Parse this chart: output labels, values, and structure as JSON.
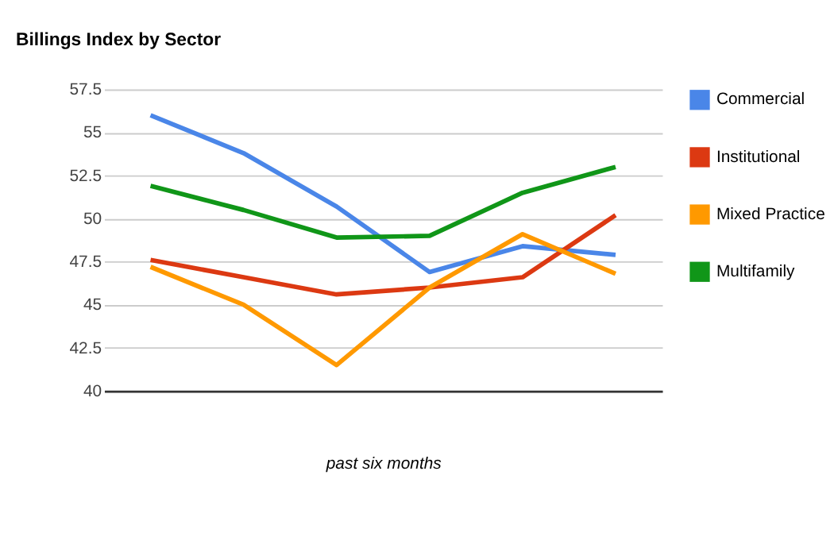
{
  "chart_data": {
    "type": "line",
    "title": "Billings Index by Sector",
    "xlabel": "past six months",
    "categories": [
      null,
      null,
      null,
      null,
      null,
      null
    ],
    "series": [
      {
        "name": "Commercial",
        "color": "#4a86e8",
        "values": [
          56.0,
          53.8,
          50.7,
          46.9,
          48.4,
          47.9
        ]
      },
      {
        "name": "Institutional",
        "color": "#dc3912",
        "values": [
          47.6,
          46.6,
          45.6,
          46.0,
          46.6,
          50.2
        ]
      },
      {
        "name": "Mixed Practice",
        "color": "#ff9900",
        "values": [
          47.2,
          45.0,
          41.5,
          46.0,
          49.1,
          46.8
        ]
      },
      {
        "name": "Multifamily",
        "color": "#109618",
        "values": [
          51.9,
          50.5,
          48.9,
          49.0,
          51.5,
          53.0
        ]
      }
    ],
    "ylim": [
      40,
      57.5
    ],
    "yticks": [
      40,
      42.5,
      45,
      47.5,
      50,
      52.5,
      55,
      57.5
    ],
    "grid": "y",
    "legend": "top right",
    "marker": "none",
    "line_style": "solid"
  }
}
